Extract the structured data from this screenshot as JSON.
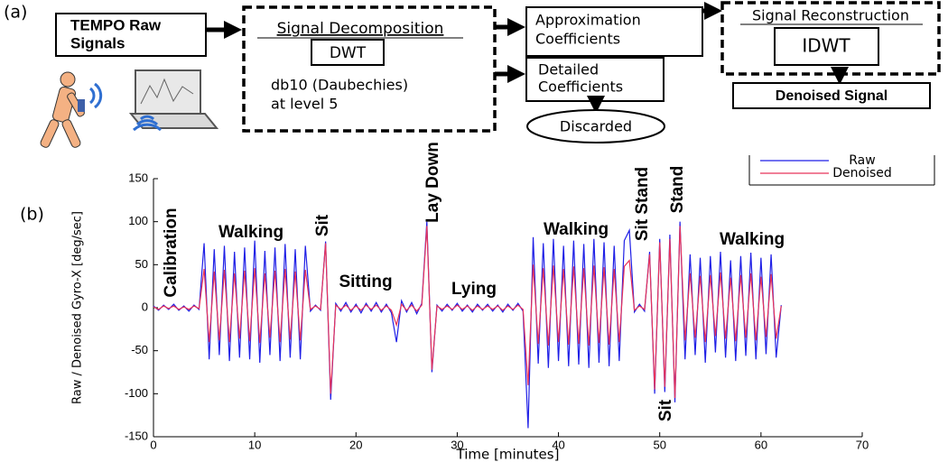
{
  "figure_a": {
    "label": "(a)",
    "raw_signals": [
      "TEMPO Raw",
      "Signals"
    ],
    "decomposition": {
      "title": "Signal Decomposition",
      "method": "DWT",
      "detail": [
        "db10 (Daubechies)",
        "at level 5"
      ]
    },
    "approximation": [
      "Approximation",
      "Coefficients"
    ],
    "detailed": [
      "Detailed",
      "Coefficients"
    ],
    "discarded": "Discarded",
    "reconstruction": {
      "title": "Signal Reconstruction",
      "method": "IDWT"
    },
    "output": "Denoised Signal"
  },
  "figure_b_label": "(b)",
  "chart_data": {
    "type": "line",
    "xlabel": "Time [minutes]",
    "ylabel": "Raw / Denoised Gyro-X [deg/sec]",
    "xlim": [
      0,
      70
    ],
    "ylim": [
      -150,
      150
    ],
    "xticks": [
      0,
      10,
      20,
      30,
      40,
      50,
      60,
      70
    ],
    "yticks": [
      -150,
      -100,
      -50,
      0,
      50,
      100,
      150
    ],
    "legend": "upper right",
    "annotations": [
      "Calibration",
      "Walking",
      "Sit",
      "Sitting",
      "Lay Down",
      "Lying",
      "Walking",
      "Sit Stand",
      "Stand",
      "Sit",
      "Walking"
    ],
    "x": [
      0,
      0.5,
      1,
      1.5,
      2,
      2.5,
      3,
      3.5,
      4,
      4.5,
      5,
      5.5,
      6,
      6.5,
      7,
      7.5,
      8,
      8.5,
      9,
      9.5,
      10,
      10.5,
      11,
      11.5,
      12,
      12.5,
      13,
      13.5,
      14,
      14.5,
      15,
      15.5,
      16,
      16.5,
      17,
      17.5,
      18,
      18.5,
      19,
      19.5,
      20,
      20.5,
      21,
      21.5,
      22,
      22.5,
      23,
      23.5,
      24,
      24.5,
      25,
      25.5,
      26,
      26.5,
      27,
      27.5,
      28,
      28.5,
      29,
      29.5,
      30,
      30.5,
      31,
      31.5,
      32,
      32.5,
      33,
      33.5,
      34,
      34.5,
      35,
      35.5,
      36,
      36.5,
      37,
      37.5,
      38,
      38.5,
      39,
      39.5,
      40,
      40.5,
      41,
      41.5,
      42,
      42.5,
      43,
      43.5,
      44,
      44.5,
      45,
      45.5,
      46,
      46.5,
      47,
      47.5,
      48,
      48.5,
      49,
      49.5,
      50,
      50.5,
      51,
      51.5,
      52,
      52.5,
      53,
      53.5,
      54,
      54.5,
      55,
      55.5,
      56,
      56.5,
      57,
      57.5,
      58,
      58.5,
      59,
      59.5,
      60,
      60.5,
      61,
      61.5,
      62
    ],
    "series": [
      {
        "name": "Raw",
        "color": "#1f1fe6",
        "values": [
          2,
          -3,
          3,
          -2,
          4,
          -3,
          2,
          -4,
          3,
          -2,
          75,
          -60,
          68,
          -55,
          72,
          -62,
          65,
          -58,
          70,
          -60,
          78,
          -64,
          66,
          -55,
          70,
          -62,
          74,
          -58,
          68,
          -60,
          72,
          -4,
          3,
          -3,
          77,
          -107,
          5,
          -4,
          6,
          -5,
          4,
          -6,
          5,
          -4,
          6,
          -5,
          4,
          -6,
          -40,
          8,
          -5,
          6,
          -7,
          5,
          100,
          -75,
          3,
          -4,
          4,
          -3,
          5,
          -4,
          3,
          -5,
          4,
          -3,
          4,
          -4,
          3,
          -5,
          4,
          -3,
          5,
          -4,
          -140,
          82,
          -65,
          75,
          -70,
          80,
          -62,
          72,
          -68,
          78,
          -66,
          74,
          -70,
          80,
          -64,
          76,
          -68,
          72,
          -62,
          78,
          90,
          -5,
          4,
          -4,
          65,
          -100,
          80,
          -98,
          85,
          -110,
          100,
          -60,
          62,
          -55,
          58,
          -64,
          60,
          -52,
          65,
          -58,
          55,
          -62,
          60,
          -56,
          64,
          -60,
          58,
          -54,
          62,
          -58,
          3
        ]
      },
      {
        "name": "Denoised",
        "color": "#e8335a",
        "values": [
          1,
          -2,
          2,
          -1,
          2,
          -2,
          1,
          -2,
          2,
          -1,
          45,
          -40,
          42,
          -38,
          44,
          -40,
          40,
          -36,
          43,
          -39,
          46,
          -41,
          40,
          -35,
          43,
          -40,
          45,
          -37,
          42,
          -38,
          44,
          -2,
          2,
          -2,
          75,
          -100,
          3,
          -2,
          3,
          -3,
          2,
          -3,
          3,
          -2,
          3,
          -3,
          2,
          -3,
          -20,
          4,
          -3,
          3,
          -4,
          3,
          95,
          -72,
          2,
          -2,
          2,
          -2,
          3,
          -2,
          2,
          -3,
          2,
          -2,
          2,
          -2,
          2,
          -3,
          2,
          -2,
          3,
          -2,
          -90,
          50,
          -42,
          46,
          -44,
          49,
          -40,
          45,
          -43,
          48,
          -42,
          46,
          -44,
          49,
          -41,
          47,
          -43,
          45,
          -40,
          48,
          55,
          -3,
          2,
          -2,
          62,
          -95,
          76,
          -92,
          80,
          -105,
          95,
          -38,
          40,
          -35,
          37,
          -40,
          38,
          -33,
          41,
          -36,
          35,
          -39,
          38,
          -35,
          40,
          -38,
          36,
          -34,
          39,
          -36,
          2
        ]
      }
    ]
  }
}
